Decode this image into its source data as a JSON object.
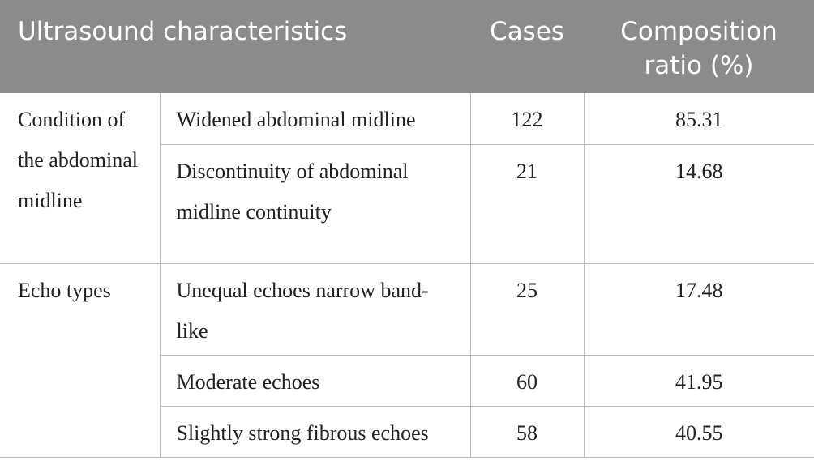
{
  "table": {
    "header": [
      "Ultrasound characteristics",
      "Cases",
      "Composition ratio (%)"
    ],
    "groups": [
      {
        "label": "Condition of the abdominal midline",
        "rows": [
          [
            "Widened abdominal midline",
            122,
            85.31
          ],
          [
            "Discontinuity of abdominal midline continuity",
            21,
            14.68
          ]
        ]
      },
      {
        "label": "Echo types",
        "rows": [
          [
            "Unequal echoes narrow band-like",
            25,
            17.48
          ],
          [
            "Moderate echoes",
            60,
            41.95
          ],
          [
            "Slightly strong fibrous echoes",
            58,
            40.55
          ]
        ]
      }
    ]
  }
}
